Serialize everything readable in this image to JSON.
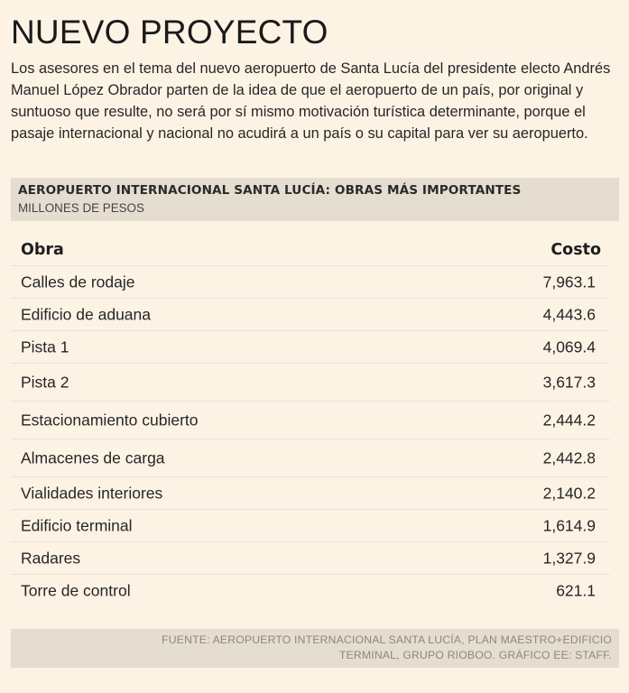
{
  "title": "NUEVO PROYECTO",
  "intro": "Los asesores en el tema del nuevo aeropuerto de Santa Lucía del presidente electo Andrés Manuel López Obrador parten de la idea de que el aeropuerto de un país, por original y suntuoso que resulte, no será por sí mismo motivación turística determinante, porque el pasaje internacional y nacional no acudirá a un país o su capital para ver su aeropuerto.",
  "table": {
    "title": "AEROPUERTO INTERNACIONAL SANTA LUCÍA: OBRAS MÁS IMPORTANTES",
    "subtitle": "MILLONES DE PESOS",
    "columns": {
      "name": "Obra",
      "cost": "Costo"
    },
    "rows": [
      {
        "name": "Calles de rodaje",
        "cost": "7,963.1"
      },
      {
        "name": "Edificio de aduana",
        "cost": "4,443.6"
      },
      {
        "name": "Pista 1",
        "cost": "4,069.4"
      },
      {
        "name": "Pista 2",
        "cost": "3,617.3"
      },
      {
        "name": "Estacionamiento cubierto",
        "cost": "2,444.2"
      },
      {
        "name": "Almacenes de carga",
        "cost": "2,442.8"
      },
      {
        "name": "Vialidades interiores",
        "cost": "2,140.2"
      },
      {
        "name": "Edificio terminal",
        "cost": "1,614.9"
      },
      {
        "name": "Radares",
        "cost": "1,327.9"
      },
      {
        "name": "Torre de control",
        "cost": "621.1"
      }
    ]
  },
  "footer": {
    "source": "FUENTE: AEROPUERTO INTERNACIONAL SANTA LUCÍA, PLAN MAESTRO+EDIFICIO TERMINAL, GRUPO RIOBOO. GRÁFICO EE: STAFF."
  }
}
